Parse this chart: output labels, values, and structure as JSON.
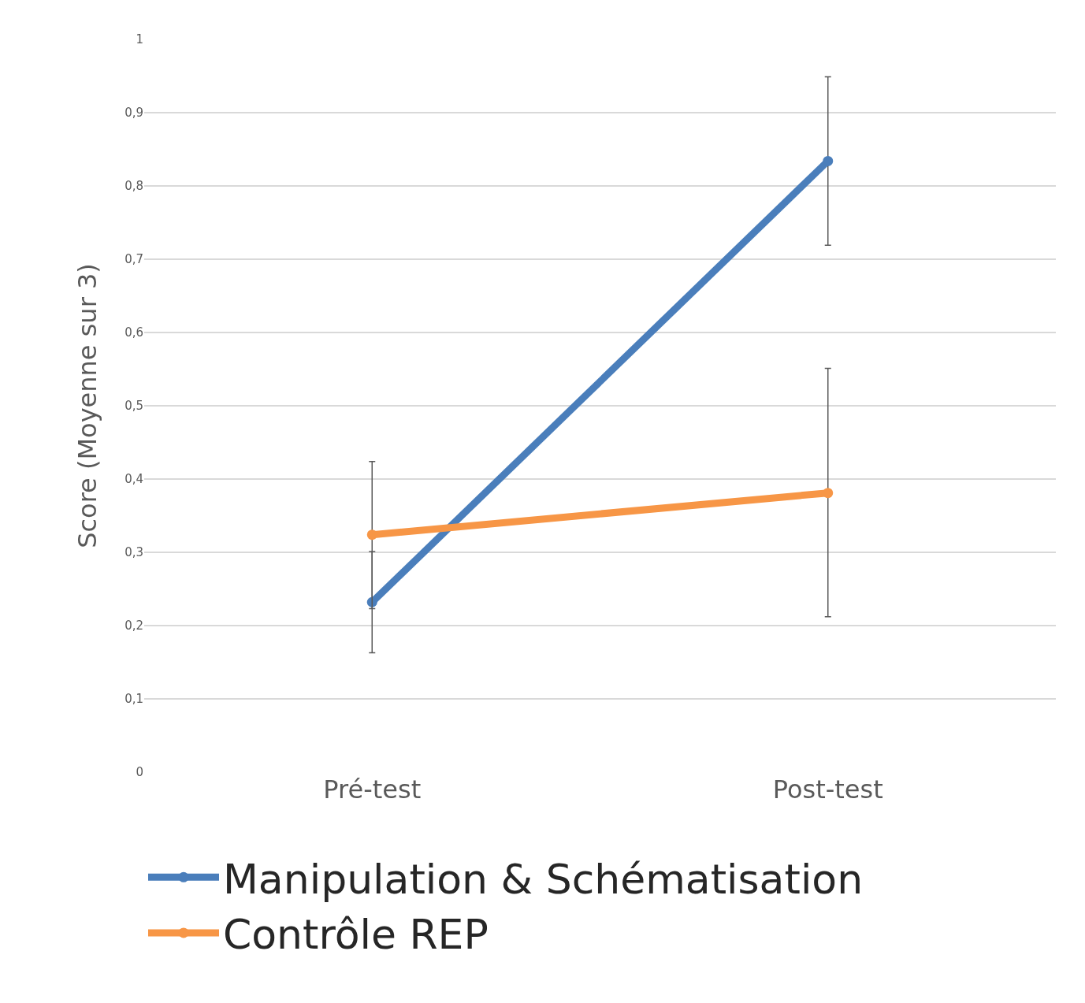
{
  "chart_data": {
    "type": "line",
    "ylabel": "Score (Moyenne sur 3)",
    "categories": [
      "Pré-test",
      "Post-test"
    ],
    "series": [
      {
        "name": "Manipulation & Schématisation",
        "color": "#4a7ebb",
        "values": [
          0.232,
          0.834
        ],
        "errors": [
          [
            0.163,
            0.301
          ],
          [
            0.719,
            0.949
          ]
        ]
      },
      {
        "name": "Contrôle REP",
        "color": "#f79646",
        "values": [
          0.324,
          0.381
        ],
        "errors": [
          [
            0.223,
            0.424
          ],
          [
            0.212,
            0.551
          ]
        ]
      }
    ],
    "ylim": [
      0,
      1
    ],
    "yticks": [
      0,
      {
        "value": 0.1,
        "label": "0,1"
      },
      {
        "value": 0.2,
        "label": "0,2"
      },
      {
        "value": 0.3,
        "label": "0,3"
      },
      {
        "value": 0.4,
        "label": "0,4"
      },
      {
        "value": 0.5,
        "label": "0,5"
      },
      {
        "value": 0.6,
        "label": "0,6"
      },
      {
        "value": 0.7,
        "label": "0,7"
      },
      {
        "value": 0.8,
        "label": "0,8"
      },
      {
        "value": 0.9,
        "label": "0,9"
      },
      1
    ],
    "grid": "y",
    "legend": "bottom",
    "marker": "circle",
    "line_style": "solid"
  }
}
